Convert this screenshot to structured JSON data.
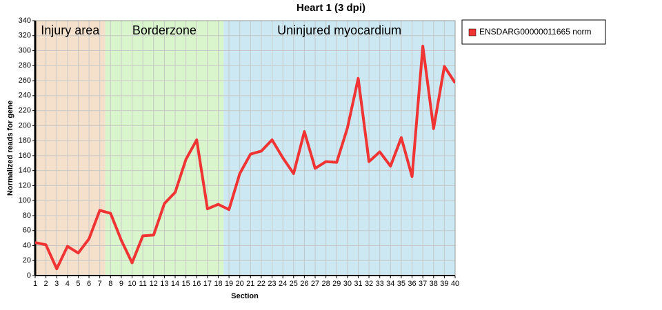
{
  "chart_data": {
    "type": "line",
    "title": "Heart 1 (3 dpi)",
    "x_label": "Section",
    "y_label": "Normalized reads for gene",
    "x": [
      1,
      2,
      3,
      4,
      5,
      6,
      7,
      8,
      9,
      10,
      11,
      12,
      13,
      14,
      15,
      16,
      17,
      18,
      19,
      20,
      21,
      22,
      23,
      24,
      25,
      26,
      27,
      28,
      29,
      30,
      31,
      32,
      33,
      34,
      35,
      36,
      37,
      38,
      39,
      40
    ],
    "series": [
      {
        "name": "ENSDARG00000011665 norm",
        "color": "#f03333",
        "values": [
          44,
          41,
          9,
          39,
          30,
          49,
          87,
          83,
          47,
          17,
          53,
          54,
          96,
          111,
          155,
          181,
          89,
          95,
          88,
          136,
          162,
          166,
          181,
          157,
          136,
          192,
          143,
          152,
          151,
          197,
          263,
          152,
          165,
          146,
          184,
          132,
          306,
          196,
          279,
          257
        ]
      }
    ],
    "regions": [
      {
        "label": "Injury area",
        "start": 1,
        "end": 7.5,
        "color": "#f5e0cc"
      },
      {
        "label": "Borderzone",
        "start": 7.5,
        "end": 18.5,
        "color": "#d8f5cc"
      },
      {
        "label": "Uninjured myocardium",
        "start": 18.5,
        "end": 40,
        "color": "#cce8f3"
      }
    ],
    "xlim": [
      1,
      40
    ],
    "ylim": [
      0,
      340
    ],
    "xticks": [
      1,
      2,
      3,
      4,
      5,
      6,
      7,
      8,
      9,
      10,
      11,
      12,
      13,
      14,
      15,
      16,
      17,
      18,
      19,
      20,
      21,
      22,
      23,
      24,
      25,
      26,
      27,
      28,
      29,
      30,
      31,
      32,
      33,
      34,
      35,
      36,
      37,
      38,
      39,
      40
    ],
    "yticks": [
      0,
      20,
      40,
      60,
      80,
      100,
      120,
      140,
      160,
      180,
      200,
      220,
      240,
      260,
      280,
      300,
      320,
      340
    ],
    "grid": true,
    "legend": "right"
  }
}
